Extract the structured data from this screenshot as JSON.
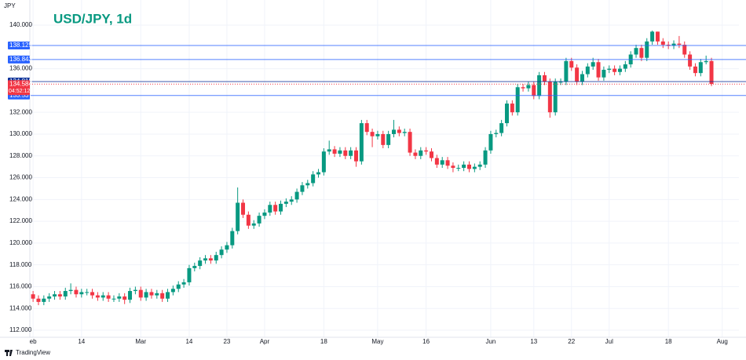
{
  "chart_data": {
    "type": "candlestick",
    "title": "USD/JPY, 1d",
    "y_axis_label": "JPY",
    "watermark": "TradingView",
    "up_color": "#089981",
    "down_color": "#f23645",
    "grid": true,
    "grid_color": "#f0f3fa",
    "xlim": [
      -0.6,
      131.1
    ],
    "ylim": [
      111.5,
      141.44
    ],
    "xticks": [
      {
        "value": 0,
        "label": "eb"
      },
      {
        "value": 9,
        "label": "14"
      },
      {
        "value": 20,
        "label": "Mar"
      },
      {
        "value": 29,
        "label": "14"
      },
      {
        "value": 36,
        "label": "23"
      },
      {
        "value": 43,
        "label": "Apr"
      },
      {
        "value": 54,
        "label": "18"
      },
      {
        "value": 64,
        "label": "May"
      },
      {
        "value": 73,
        "label": "16"
      },
      {
        "value": 85,
        "label": "Jun"
      },
      {
        "value": 93,
        "label": "13"
      },
      {
        "value": 100,
        "label": "22"
      },
      {
        "value": 107,
        "label": "Jul"
      },
      {
        "value": 118,
        "label": "18"
      },
      {
        "value": 128,
        "label": "Aug"
      }
    ],
    "yticks": [
      {
        "value": 140,
        "label": "140.000"
      },
      {
        "value": 136,
        "label": "136.000"
      },
      {
        "value": 132,
        "label": "132.000"
      },
      {
        "value": 130,
        "label": "130.000"
      },
      {
        "value": 128,
        "label": "128.000"
      },
      {
        "value": 126,
        "label": "126.000"
      },
      {
        "value": 124,
        "label": "124.000"
      },
      {
        "value": 122,
        "label": "122.000"
      },
      {
        "value": 120,
        "label": "120.000"
      },
      {
        "value": 118,
        "label": "118.000"
      },
      {
        "value": 116,
        "label": "116.000"
      },
      {
        "value": 114,
        "label": "114.000"
      },
      {
        "value": 112,
        "label": "112.000"
      }
    ],
    "levels": [
      {
        "value": 138.125,
        "label": "138.125",
        "color": "#2962ff"
      },
      {
        "value": 136.843,
        "label": "136.843",
        "color": "#2962ff"
      },
      {
        "value": 134.818,
        "label": "134.818",
        "color": "#0c3299"
      },
      {
        "value": 133.537,
        "label": "133.537",
        "color": "#2962ff"
      }
    ],
    "current_price": {
      "value": 134.584,
      "label": "134.584",
      "countdown": "04:52:12",
      "color": "#f23645"
    },
    "open": [
      115.3,
      114.9,
      114.6,
      114.9,
      115.1,
      115.3,
      115.1,
      115.6,
      115.7,
      115.3,
      115.5,
      115.5,
      115.2,
      115.0,
      115.2,
      114.9,
      114.9,
      115.1,
      114.8,
      115.6,
      115.7,
      115.0,
      115.5,
      115.2,
      115.4,
      114.9,
      115.5,
      115.8,
      116.2,
      116.4,
      117.7,
      117.9,
      118.4,
      118.6,
      118.4,
      118.9,
      119.4,
      119.8,
      121.1,
      123.7,
      122.6,
      121.6,
      121.8,
      122.5,
      122.8,
      123.5,
      122.9,
      123.6,
      123.8,
      124.0,
      124.7,
      125.3,
      125.5,
      126.3,
      126.5,
      128.4,
      128.6,
      128.2,
      128.5,
      128.0,
      128.5,
      127.5,
      131.0,
      130.2,
      129.8,
      130.0,
      129.0,
      130.0,
      130.4,
      130.1,
      130.2,
      128.3,
      128.0,
      128.5,
      128.4,
      127.8,
      127.2,
      127.6,
      127.1,
      126.9,
      126.9,
      127.2,
      126.8,
      127.0,
      127.2,
      128.5,
      130.0,
      130.1,
      131.0,
      132.8,
      132.0,
      134.3,
      134.2,
      134.5,
      133.5,
      135.4,
      134.8,
      132.0,
      134.8,
      134.8,
      136.7,
      136.1,
      134.8,
      135.5,
      136.2,
      136.6,
      135.2,
      135.9,
      136.0,
      135.7,
      136.0,
      136.4,
      137.3,
      137.9,
      137.0,
      138.5,
      139.4,
      138.5,
      138.2,
      138.1,
      138.3,
      138.2,
      137.3,
      136.2,
      135.6,
      136.6,
      136.7
    ],
    "high": [
      115.6,
      115.2,
      115.2,
      115.4,
      115.6,
      115.6,
      115.9,
      116.3,
      116.0,
      115.8,
      115.8,
      115.8,
      115.5,
      115.5,
      115.5,
      115.2,
      115.4,
      115.4,
      115.9,
      116.0,
      116.0,
      115.8,
      115.8,
      115.7,
      115.7,
      115.8,
      116.1,
      116.5,
      116.7,
      118.0,
      118.2,
      118.7,
      118.9,
      118.9,
      119.2,
      119.7,
      120.1,
      121.4,
      125.1,
      124.0,
      122.9,
      122.1,
      122.8,
      123.1,
      123.8,
      123.8,
      123.9,
      124.1,
      124.3,
      125.0,
      125.6,
      125.8,
      126.6,
      126.8,
      128.7,
      129.4,
      128.9,
      128.8,
      128.8,
      128.8,
      128.8,
      131.3,
      131.3,
      130.5,
      130.3,
      130.3,
      130.3,
      131.3,
      130.7,
      130.5,
      130.5,
      128.6,
      128.8,
      128.8,
      128.7,
      128.1,
      127.9,
      127.9,
      127.4,
      127.2,
      127.5,
      127.5,
      127.3,
      127.5,
      128.8,
      130.3,
      130.4,
      131.3,
      133.1,
      133.1,
      134.6,
      134.6,
      134.8,
      134.8,
      135.7,
      135.7,
      135.1,
      135.1,
      135.1,
      137.0,
      137.0,
      136.4,
      135.8,
      136.5,
      137.0,
      136.9,
      136.2,
      136.3,
      136.3,
      136.3,
      136.7,
      137.6,
      138.2,
      138.2,
      138.8,
      139.5,
      139.4,
      138.8,
      138.5,
      138.6,
      139.0,
      138.5,
      137.6,
      136.5,
      136.9,
      137.2,
      137.0
    ],
    "low": [
      114.6,
      114.3,
      114.3,
      114.6,
      114.8,
      114.8,
      114.8,
      115.3,
      115.0,
      115.0,
      115.2,
      114.9,
      114.7,
      114.7,
      114.6,
      114.6,
      114.6,
      114.4,
      114.5,
      115.3,
      114.7,
      114.7,
      114.9,
      114.9,
      114.6,
      114.6,
      115.2,
      115.5,
      115.9,
      116.1,
      117.4,
      117.6,
      118.1,
      118.1,
      118.1,
      118.6,
      119.1,
      119.5,
      120.8,
      122.3,
      121.3,
      121.3,
      121.5,
      122.2,
      122.5,
      122.6,
      122.6,
      123.3,
      123.5,
      123.7,
      124.4,
      125.0,
      125.2,
      126.0,
      126.2,
      128.1,
      127.9,
      127.9,
      127.7,
      127.7,
      127.0,
      127.2,
      129.9,
      128.8,
      129.5,
      128.7,
      128.7,
      129.7,
      129.8,
      129.8,
      128.0,
      127.7,
      127.7,
      128.1,
      127.5,
      126.9,
      126.9,
      126.8,
      126.5,
      126.6,
      126.6,
      126.5,
      126.5,
      126.7,
      126.9,
      128.2,
      129.7,
      129.8,
      130.7,
      131.7,
      131.7,
      133.9,
      133.9,
      133.2,
      133.2,
      134.5,
      131.5,
      131.7,
      134.5,
      134.5,
      135.8,
      134.5,
      134.5,
      135.2,
      135.9,
      134.9,
      134.9,
      135.6,
      135.4,
      135.4,
      135.7,
      136.1,
      137.0,
      136.7,
      136.7,
      138.2,
      138.2,
      137.9,
      137.8,
      137.8,
      137.9,
      137.0,
      135.9,
      135.3,
      135.3,
      136.4,
      134.4
    ],
    "close": [
      114.9,
      114.6,
      114.9,
      115.1,
      115.3,
      115.1,
      115.6,
      115.7,
      115.3,
      115.5,
      115.5,
      115.2,
      115.0,
      115.2,
      114.9,
      114.9,
      115.1,
      114.8,
      115.6,
      115.7,
      115.0,
      115.5,
      115.2,
      115.4,
      114.9,
      115.5,
      115.8,
      116.2,
      116.4,
      117.7,
      117.9,
      118.4,
      118.6,
      118.4,
      118.9,
      119.4,
      119.8,
      121.1,
      123.7,
      122.6,
      121.6,
      121.8,
      122.5,
      122.8,
      123.5,
      122.9,
      123.6,
      123.8,
      124.0,
      124.7,
      125.3,
      125.5,
      126.3,
      126.5,
      128.4,
      128.6,
      128.2,
      128.5,
      128.0,
      128.5,
      127.5,
      131.0,
      130.2,
      129.8,
      130.0,
      129.0,
      130.0,
      130.4,
      130.1,
      130.2,
      128.3,
      128.0,
      128.5,
      128.4,
      127.8,
      127.2,
      127.6,
      127.1,
      126.9,
      126.9,
      127.2,
      126.8,
      127.0,
      127.2,
      128.5,
      130.0,
      130.1,
      131.0,
      132.8,
      132.0,
      134.3,
      134.2,
      134.5,
      133.5,
      135.4,
      134.8,
      132.0,
      134.8,
      134.8,
      136.7,
      136.1,
      134.8,
      135.5,
      136.2,
      136.6,
      135.2,
      135.9,
      136.0,
      135.7,
      136.0,
      136.4,
      137.3,
      137.9,
      137.0,
      138.5,
      139.4,
      138.5,
      138.2,
      138.1,
      138.3,
      138.2,
      137.3,
      136.2,
      135.6,
      136.6,
      136.7,
      134.6
    ]
  }
}
